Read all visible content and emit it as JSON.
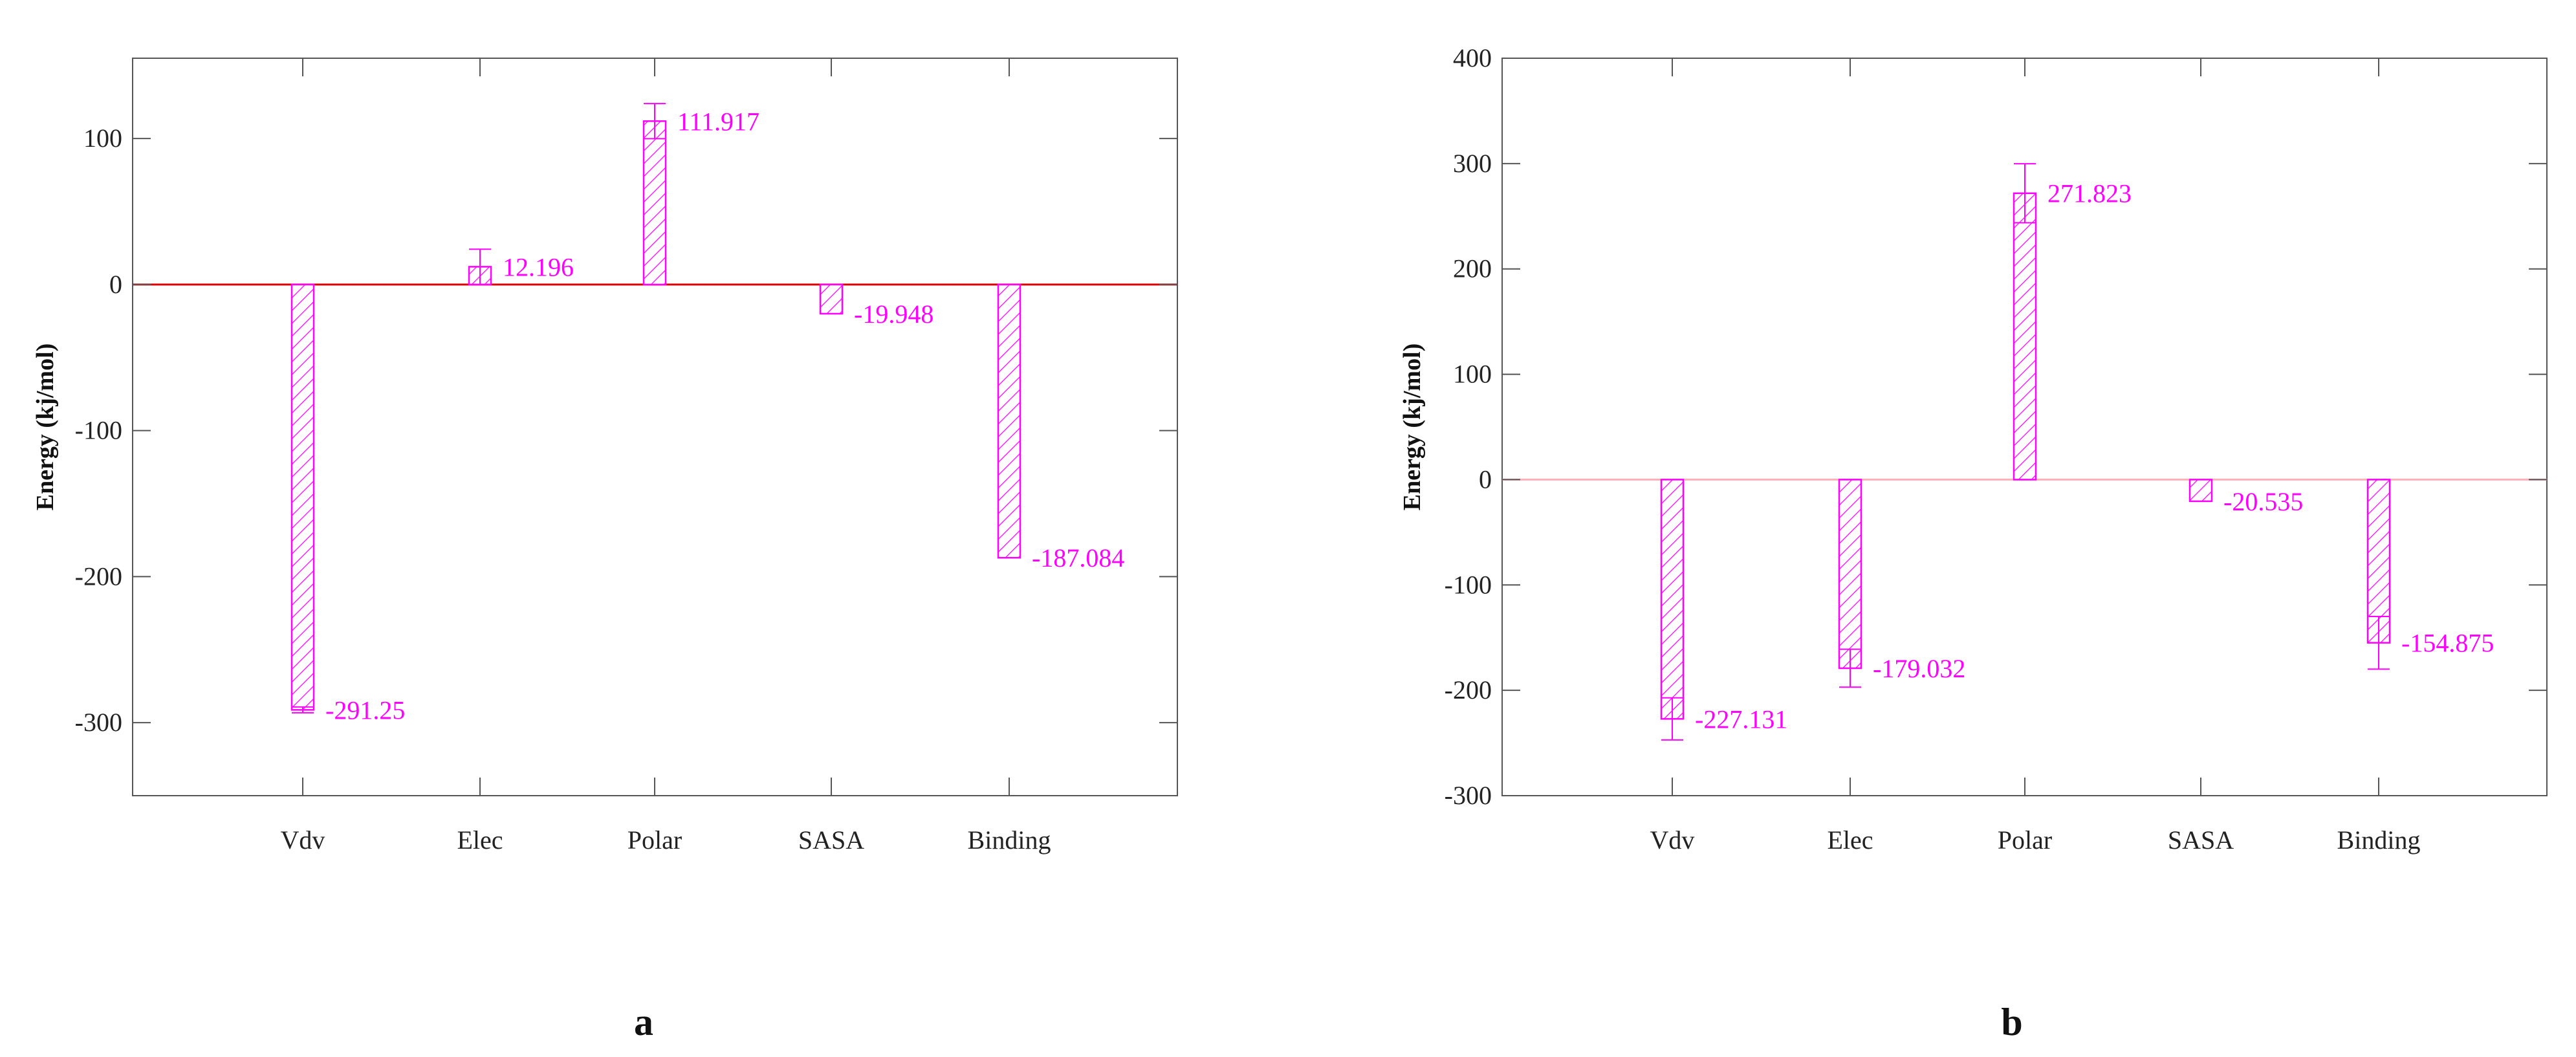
{
  "figure": {
    "panels": [
      "a",
      "b"
    ]
  },
  "colors": {
    "bar": "#ff00ff",
    "zero_line_a": "#dd0000",
    "zero_line_b": "#ffb0b8",
    "axis": "#555555"
  },
  "chart_data": [
    {
      "type": "bar",
      "title": "",
      "xlabel": "",
      "ylabel": "Energy (kj/mol)",
      "categories": [
        "Vdv",
        "Elec",
        "Polar",
        "SASA",
        "Binding"
      ],
      "values": [
        -291.25,
        12.196,
        111.917,
        -19.948,
        -187.084
      ],
      "value_labels": [
        "-291.25",
        "12.196",
        "111.917",
        "-19.948",
        "-187.084"
      ],
      "error": [
        2,
        12,
        12,
        0,
        0
      ],
      "ylim": [
        -350,
        155
      ],
      "yticks": [
        100,
        0,
        -100,
        -200,
        -300
      ],
      "ytick_labels": [
        "100",
        "0",
        "-100",
        "-200",
        "-300"
      ],
      "grid": false,
      "legend": "none"
    },
    {
      "type": "bar",
      "title": "",
      "xlabel": "",
      "ylabel": "Energy (kj/mol)",
      "categories": [
        "Vdv",
        "Elec",
        "Polar",
        "SASA",
        "Binding"
      ],
      "values": [
        -227.131,
        -179.032,
        271.823,
        -20.535,
        -154.875
      ],
      "value_labels": [
        "-227.131",
        "-179.032",
        "271.823",
        "-20.535",
        "-154.875"
      ],
      "error": [
        20,
        18,
        28,
        0,
        25
      ],
      "ylim": [
        -300,
        400
      ],
      "yticks": [
        400,
        300,
        200,
        100,
        0,
        -100,
        -200,
        -300
      ],
      "ytick_labels": [
        "400",
        "300",
        "200",
        "100",
        "0",
        "-100",
        "-200",
        "-300"
      ],
      "grid": false,
      "legend": "none"
    }
  ]
}
